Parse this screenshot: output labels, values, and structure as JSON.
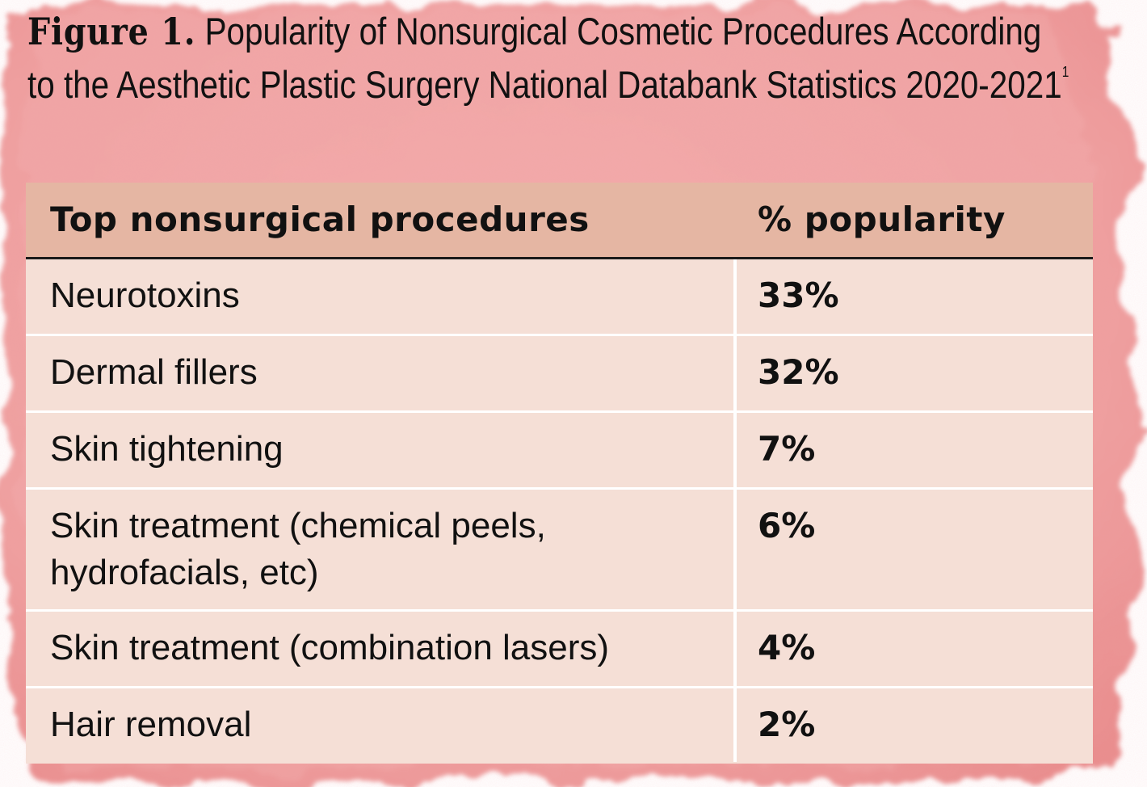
{
  "figure": {
    "label": "Figure 1.",
    "title": "Popularity of Nonsurgical Cosmetic Procedures According to the Aesthetic Plastic Surgery National Databank Statistics 2020-2021",
    "reference_mark": "1"
  },
  "colors": {
    "header_bg": "#e5b6a3",
    "row_bg": "#f5dfd6",
    "watercolor": "#ec8f8f"
  },
  "chart_data": {
    "type": "table",
    "columns": [
      "Top nonsurgical procedures",
      "% popularity"
    ],
    "rows": [
      {
        "procedure": "Neurotoxins",
        "popularity": "33%",
        "value": 33
      },
      {
        "procedure": "Dermal fillers",
        "popularity": "32%",
        "value": 32
      },
      {
        "procedure": "Skin tightening",
        "popularity": "7%",
        "value": 7
      },
      {
        "procedure": "Skin treatment (chemical peels, hydrofacials, etc)",
        "popularity": "6%",
        "value": 6
      },
      {
        "procedure": "Skin treatment (combination lasers)",
        "popularity": "4%",
        "value": 4
      },
      {
        "procedure": "Hair removal",
        "popularity": "2%",
        "value": 2
      }
    ]
  }
}
